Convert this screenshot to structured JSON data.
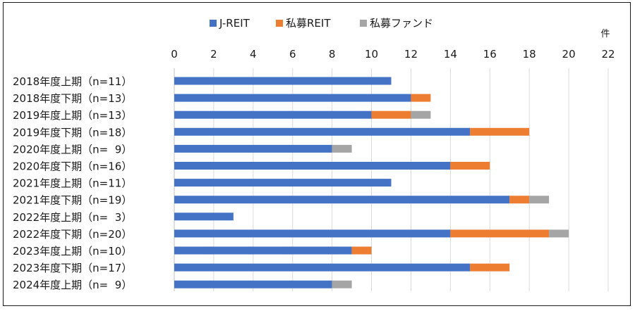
{
  "chart_data": {
    "type": "bar",
    "orientation": "horizontal",
    "stacked": true,
    "title": "",
    "unit_label": "件",
    "xlim": [
      0,
      22
    ],
    "x_ticks": [
      0,
      2,
      4,
      6,
      8,
      10,
      12,
      14,
      16,
      18,
      20,
      22
    ],
    "grid": true,
    "legend_position": "top",
    "categories": [
      "2018年度上期（n=11）",
      "2018年度下期（n=13）",
      "2019年度上期（n=13）",
      "2019年度下期（n=18）",
      "2020年度上期（n=  9）",
      "2020年度下期（n=16）",
      "2021年度上期（n=11）",
      "2021年度下期（n=19）",
      "2022年度上期（n=  3）",
      "2022年度下期（n=20）",
      "2023年度上期（n=10）",
      "2023年度下期（n=17）",
      "2024年度上期（n=  9）"
    ],
    "series": [
      {
        "name": "J-REIT",
        "color": "#4472C4",
        "values": [
          11,
          12,
          10,
          15,
          8,
          14,
          11,
          17,
          3,
          14,
          9,
          15,
          8
        ]
      },
      {
        "name": "私募REIT",
        "color": "#ED7D31",
        "values": [
          0,
          1,
          2,
          3,
          0,
          2,
          0,
          1,
          0,
          5,
          1,
          2,
          0
        ]
      },
      {
        "name": "私募ファンド",
        "color": "#A5A5A5",
        "values": [
          0,
          0,
          1,
          0,
          1,
          0,
          0,
          1,
          0,
          1,
          0,
          0,
          1
        ]
      }
    ]
  }
}
